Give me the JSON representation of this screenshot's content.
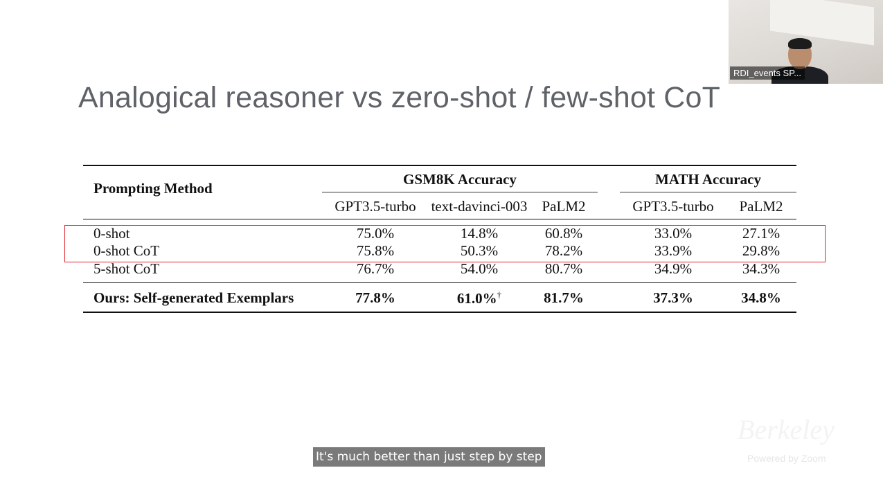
{
  "slide": {
    "title": "Analogical reasoner vs zero-shot / few-shot CoT"
  },
  "table": {
    "method_header": "Prompting Method",
    "group_headers": {
      "gsm8k": "GSM8K Accuracy",
      "math": "MATH Accuracy"
    },
    "columns": [
      "GPT3.5-turbo",
      "text-davinci-003",
      "PaLM2",
      "GPT3.5-turbo",
      "PaLM2"
    ],
    "rows": [
      {
        "method": "0-shot",
        "values": [
          "75.0%",
          "14.8%",
          "60.8%",
          "33.0%",
          "27.1%"
        ]
      },
      {
        "method": "0-shot CoT",
        "values": [
          "75.8%",
          "50.3%",
          "78.2%",
          "33.9%",
          "29.8%"
        ]
      },
      {
        "method": "5-shot CoT",
        "values": [
          "76.7%",
          "54.0%",
          "80.7%",
          "34.9%",
          "34.3%"
        ]
      }
    ],
    "ours": {
      "method": "Ours: Self-generated Exemplars",
      "values": [
        "77.8%",
        "61.0%",
        "81.7%",
        "37.3%",
        "34.8%"
      ],
      "dagger": "†"
    }
  },
  "highlight_color": "#e0202a",
  "video": {
    "name_tag": "RDI_events SP..."
  },
  "caption": {
    "text": "It's much better than just step by step"
  },
  "watermark": {
    "logo": "Berkeley",
    "powered": "Powered by Zoom"
  }
}
